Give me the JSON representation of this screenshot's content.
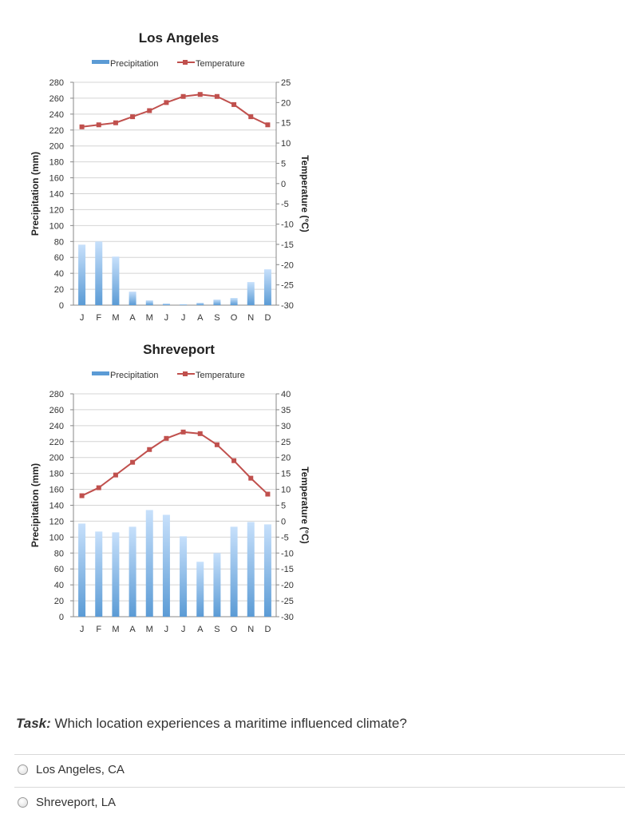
{
  "chart_data": [
    {
      "type": "bar",
      "title": "Los Angeles",
      "categories": [
        "J",
        "F",
        "M",
        "A",
        "M",
        "J",
        "J",
        "A",
        "S",
        "O",
        "N",
        "D"
      ],
      "series": [
        {
          "name": "Precipitation",
          "type": "bar",
          "axis": "left",
          "color": "#5b9bd5",
          "values": [
            76,
            80,
            61,
            17,
            6,
            2,
            1,
            3,
            7,
            9,
            29,
            45
          ]
        },
        {
          "name": "Temperature",
          "type": "line",
          "axis": "right",
          "color": "#c0504d",
          "values": [
            14,
            14.5,
            15,
            16.5,
            18,
            20,
            21.5,
            22,
            21.5,
            19.5,
            16.5,
            14.5
          ]
        }
      ],
      "ylabel": "Precipitation (mm)",
      "y2label": "Temperature (°C)",
      "ylim": [
        0,
        280
      ],
      "y2lim": [
        -30,
        25
      ],
      "yticks": [
        "0",
        "20",
        "40",
        "60",
        "80",
        "100",
        "120",
        "140",
        "160",
        "180",
        "200",
        "220",
        "240",
        "260",
        "280"
      ],
      "y2ticks": [
        "-30",
        "-25",
        "-20",
        "-15",
        "-10",
        "-5",
        "0",
        "5",
        "10",
        "15",
        "20",
        "25"
      ],
      "legend": "top",
      "grid": true
    },
    {
      "type": "bar",
      "title": "Shreveport",
      "categories": [
        "J",
        "F",
        "M",
        "A",
        "M",
        "J",
        "J",
        "A",
        "S",
        "O",
        "N",
        "D"
      ],
      "series": [
        {
          "name": "Precipitation",
          "type": "bar",
          "axis": "left",
          "color": "#5b9bd5",
          "values": [
            117,
            107,
            106,
            113,
            134,
            128,
            101,
            69,
            80,
            113,
            119,
            116
          ]
        },
        {
          "name": "Temperature",
          "type": "line",
          "axis": "right",
          "color": "#c0504d",
          "values": [
            8,
            10.5,
            14.5,
            18.5,
            22.5,
            26,
            28,
            27.5,
            24,
            19,
            13.5,
            8.5
          ]
        }
      ],
      "ylabel": "Precipitation (mm)",
      "y2label": "Temperature (°C)",
      "ylim": [
        0,
        280
      ],
      "y2lim": [
        -30,
        40
      ],
      "yticks": [
        "0",
        "20",
        "40",
        "60",
        "80",
        "100",
        "120",
        "140",
        "160",
        "180",
        "200",
        "220",
        "240",
        "260",
        "280"
      ],
      "y2ticks": [
        "-30",
        "-25",
        "-20",
        "-15",
        "-10",
        "-5",
        "0",
        "5",
        "10",
        "15",
        "20",
        "25",
        "30",
        "35",
        "40"
      ],
      "legend": "top",
      "grid": true
    }
  ],
  "question": {
    "task_label": "Task:",
    "text": "Which location experiences a maritime influenced climate?",
    "options": [
      "Los Angeles, CA",
      "Shreveport, LA"
    ]
  }
}
